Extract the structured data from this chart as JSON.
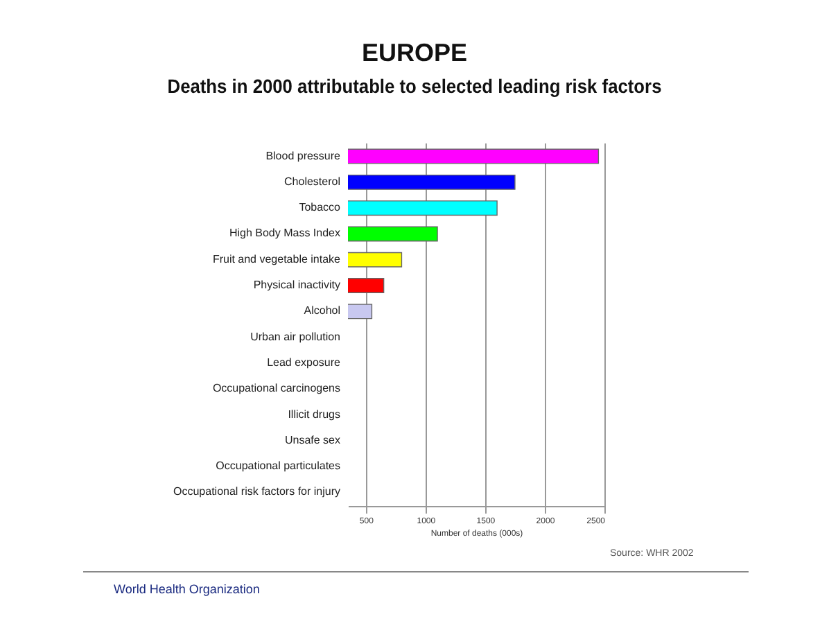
{
  "chart_data": {
    "type": "bar",
    "orientation": "horizontal",
    "title": "EUROPE",
    "subtitle": "Deaths in 2000 attributable to selected leading risk factors",
    "xlabel": "Number of deaths (000s)",
    "categories": [
      "Blood pressure",
      "Cholesterol",
      "Tobacco",
      "High Body Mass Index",
      "Fruit and vegetable intake",
      "Physical inactivity",
      "Alcohol",
      "Urban air pollution",
      "Lead exposure",
      "Occupational carcinogens",
      "Illicit drugs",
      "Unsafe sex",
      "Occupational particulates",
      "Occupational risk factors for injury"
    ],
    "values": [
      2450,
      1750,
      1600,
      1100,
      800,
      650,
      550,
      null,
      null,
      null,
      null,
      null,
      null,
      null
    ],
    "colors": [
      "#ff00ff",
      "#0000ff",
      "#00ffff",
      "#00ff00",
      "#ffff00",
      "#ff0000",
      "#c8c8f0",
      null,
      null,
      null,
      null,
      null,
      null,
      null
    ],
    "xlim": [
      350,
      2500
    ],
    "xticks": [
      500,
      1000,
      1500,
      2000,
      2500
    ],
    "grid": "x",
    "annotations": [
      "Source: WHR 2002",
      "World Health Organization"
    ]
  }
}
